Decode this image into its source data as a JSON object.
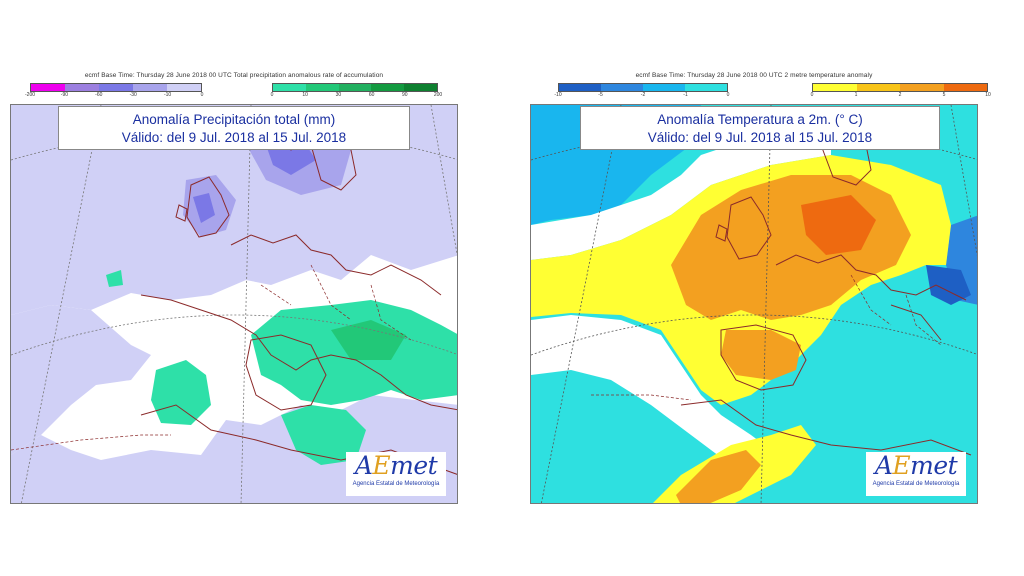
{
  "left_panel": {
    "header": "ecmf  Base Time: Thursday 28 June 2018 00 UTC Total precipitation anomalous rate of accumulation",
    "title_line1": "Anomalía Precipitación total (mm)",
    "title_line2": "Válido: del 9 Jul. 2018 al 15 Jul. 2018",
    "neg_ticks": [
      "-200",
      "-90",
      "-60",
      "-30",
      "-10",
      "0"
    ],
    "pos_ticks": [
      "0",
      "10",
      "30",
      "60",
      "90",
      "200"
    ],
    "neg_colors": [
      "#ee00ee",
      "#9c7fe0",
      "#7b78e6",
      "#a8a4ec",
      "#d0d0f6"
    ],
    "pos_colors": [
      "#2ee0a8",
      "#22c878",
      "#22b060",
      "#139a40",
      "#0e8030"
    ]
  },
  "right_panel": {
    "header": "ecmf  Base Time: Thursday 28 June 2018 00 UTC 2 metre temperature anomaly",
    "title_line1": "Anomalía Temperatura a 2m. (° C)",
    "title_line2": "Válido: del 9 Jul. 2018 al 15 Jul. 2018",
    "neg_ticks": [
      "-10",
      "-5",
      "-2",
      "-1",
      "0"
    ],
    "pos_ticks": [
      "0",
      "1",
      "2",
      "5",
      "10"
    ],
    "neg_colors": [
      "#1e5fc4",
      "#2e86de",
      "#19b6ee",
      "#2ee0e0"
    ],
    "pos_colors": [
      "#ffff33",
      "#f8c418",
      "#f3a020",
      "#ee6a10"
    ]
  },
  "logo": {
    "mark_a": "A",
    "mark_e": "E",
    "mark_rest": "met",
    "subtitle": "Agencia Estatal de Meteorología"
  }
}
